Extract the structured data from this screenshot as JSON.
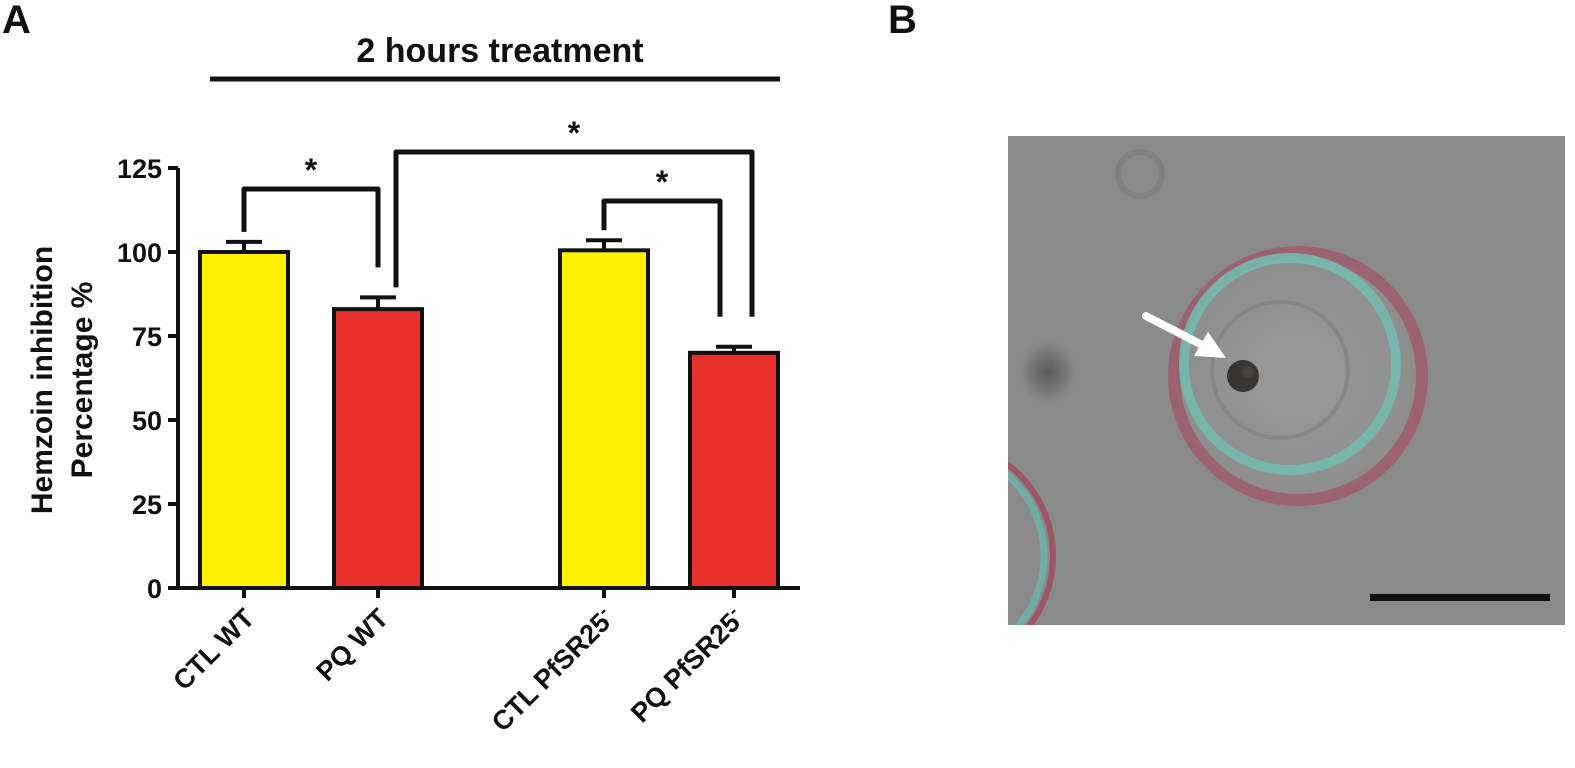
{
  "panels": {
    "a_label": "A",
    "b_label": "B"
  },
  "treatment_label": "2 hours treatment",
  "chart_data": {
    "type": "bar",
    "title": "",
    "xlabel": "",
    "ylabel_lines": [
      "Hemzoin inhibition",
      "Percentage %"
    ],
    "ylim": [
      0,
      125
    ],
    "yticks": [
      0,
      25,
      50,
      75,
      100,
      125
    ],
    "grid": false,
    "legend": "none",
    "categories": [
      "CTL WT",
      "PQ WT",
      "CTL PfSR25",
      "PQ PfSR25"
    ],
    "category_superscripts": [
      "",
      "",
      "-",
      "-"
    ],
    "values": [
      100,
      83,
      100.5,
      70
    ],
    "errors": [
      3,
      3.5,
      3,
      1.8
    ],
    "bar_colors": [
      "#FFF200",
      "#E8302A",
      "#FFF200",
      "#E8302A"
    ],
    "significance": [
      {
        "from": "CTL WT",
        "to": "PQ WT",
        "label": "*"
      },
      {
        "from": "CTL PfSR25",
        "to": "PQ PfSR25",
        "label": "*"
      },
      {
        "from": "PQ WT",
        "to": "PQ PfSR25",
        "label": "*"
      }
    ]
  },
  "micrograph": {
    "background": "#8a8a8a",
    "arrow_color": "#ffffff",
    "scale_bar_color": "#111111"
  }
}
